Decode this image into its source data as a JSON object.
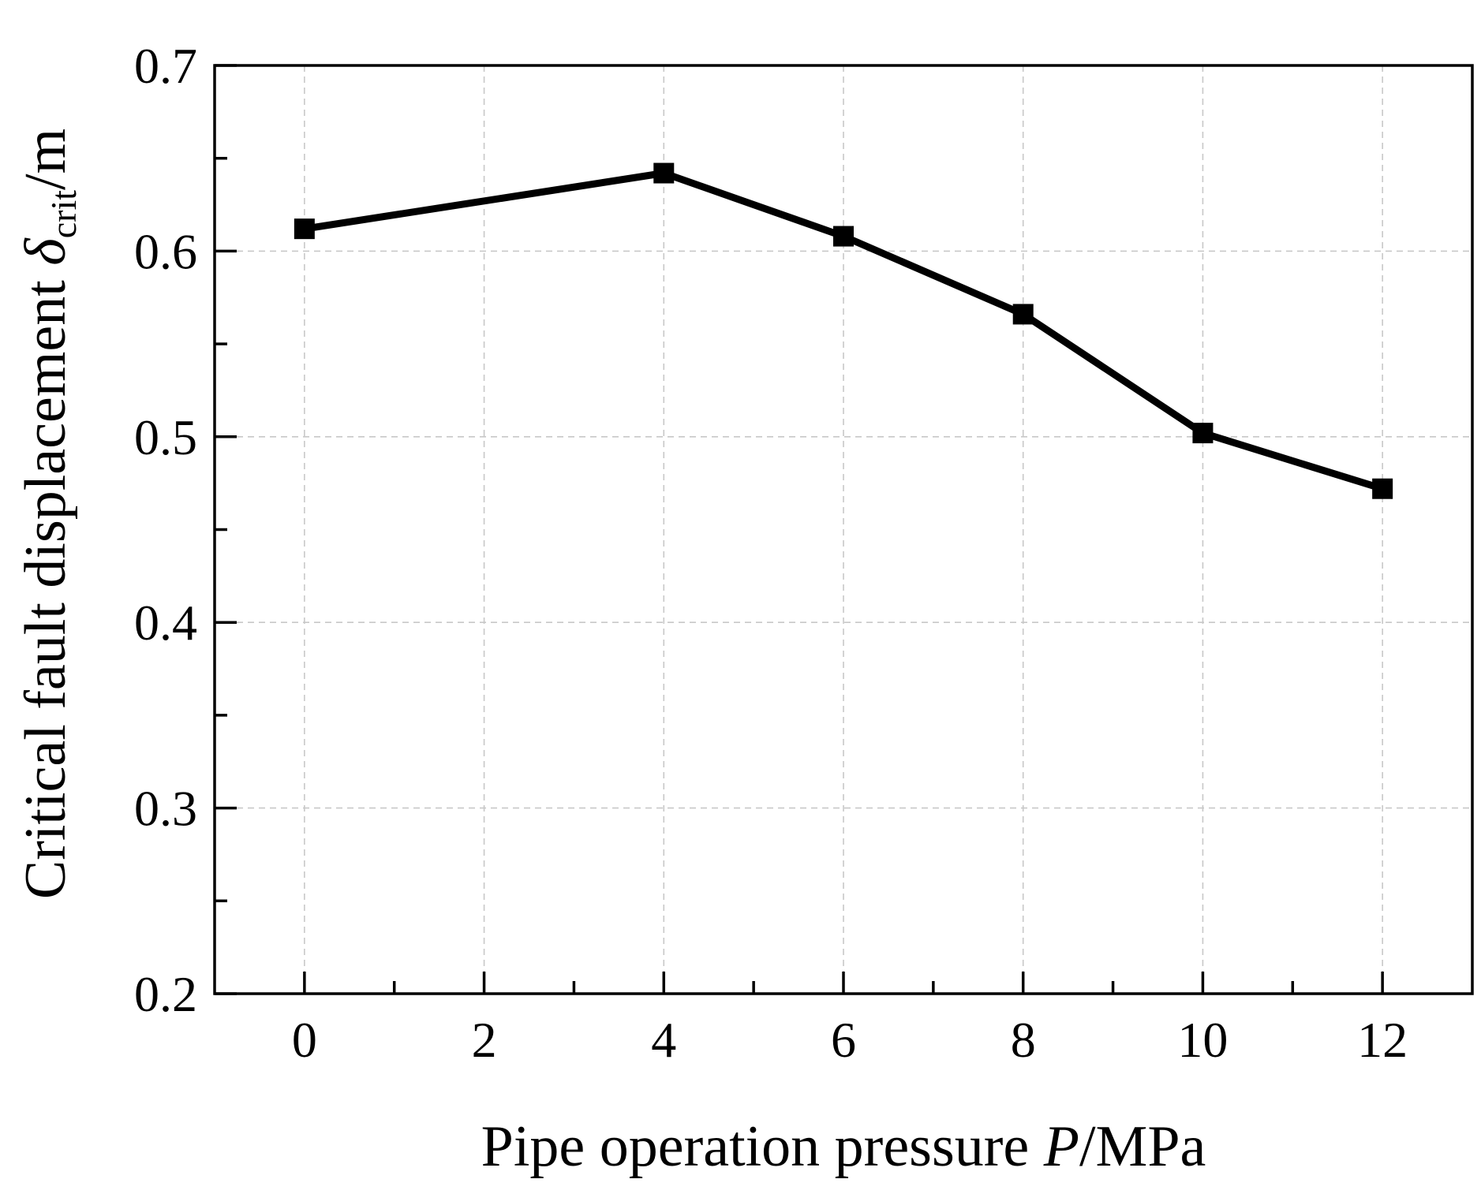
{
  "chart_data": {
    "type": "line",
    "title": "",
    "xlabel": {
      "prefix": "Pipe operation pressure ",
      "italic": "P",
      "suffix": "/MPa"
    },
    "ylabel": {
      "prefix": "Critical fault displacement ",
      "symbol": "δ",
      "subscript": "crit",
      "suffix": "/m"
    },
    "xlim": [
      -1,
      13
    ],
    "ylim": [
      0.2,
      0.7
    ],
    "xticks": [
      0,
      2,
      4,
      6,
      8,
      10,
      12
    ],
    "xtick_labels": [
      "0",
      "2",
      "4",
      "6",
      "8",
      "10",
      "12"
    ],
    "x_minor_ticks": [
      1,
      3,
      5,
      7,
      9,
      11
    ],
    "yticks": [
      0.2,
      0.3,
      0.4,
      0.5,
      0.6,
      0.7
    ],
    "ytick_labels": [
      "0.2",
      "0.3",
      "0.4",
      "0.5",
      "0.6",
      "0.7"
    ],
    "y_minor_ticks": [
      0.25,
      0.35,
      0.45,
      0.55,
      0.65
    ],
    "grid": true,
    "series": [
      {
        "name": "Critical fault displacement",
        "color": "#000000",
        "marker": "square",
        "x": [
          0,
          4,
          6,
          8,
          10,
          12
        ],
        "y": [
          0.612,
          0.642,
          0.608,
          0.566,
          0.502,
          0.472
        ]
      }
    ]
  }
}
